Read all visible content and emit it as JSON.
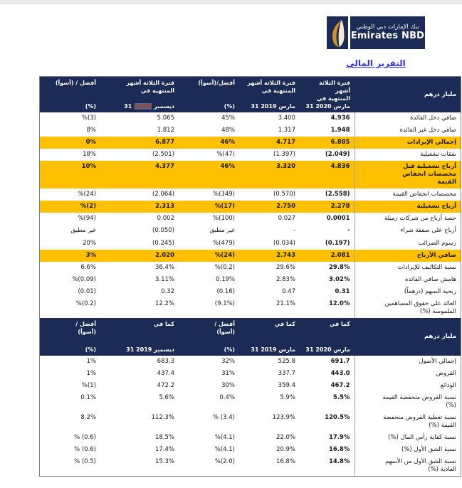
{
  "page": {
    "title": "التقرير المالي"
  },
  "logo": {
    "arabic_name": "بنك الإمارات دبي الوطني",
    "english_name": "Emirates NBD",
    "navy": "#1b2b55",
    "gold": "#c9952c"
  },
  "colors": {
    "header_navy": "#1b2b55",
    "highlight_gold": "#ffc000",
    "title_blue": "#3333e0",
    "revision_red": "#b13a2b",
    "revision_bg": "#5a6480",
    "outer_border": "#7f7f7f"
  },
  "tables": [
    {
      "name": "income-statement",
      "unit_label": "مليار درهم",
      "columns": [
        {
          "key": "mar2020",
          "top": "فترة الثلاثة أشهر",
          "mid": "المنتهية في",
          "bottom": "31 مارس 2020",
          "bold_values": true
        },
        {
          "key": "mar2019",
          "top": "فترة الثلاثة أشهر",
          "mid": "المنتهية في",
          "bottom": "31 مارس 2019"
        },
        {
          "key": "pct-vs-mar2019",
          "top": "أفضل/(أسوأ)",
          "bottom": "(%)"
        },
        {
          "key": "dec2019",
          "top": "فترة الثلاثة أشهر",
          "mid": "المنتهية في",
          "bottom": "31 ديسمبر ",
          "bottom_mark": "2019"
        },
        {
          "key": "pct-vs-dec2019",
          "top": "أفضل / (أسوأ)",
          "bottom": "(%)"
        }
      ],
      "rows": [
        {
          "label": "صافي دخل الفائدة",
          "values": [
            "4.936",
            "3.400",
            "45%",
            "5.065",
            "%(3)"
          ]
        },
        {
          "label": "صافي دخل غير الفائدة",
          "values": [
            "1.948",
            "1.317",
            "48%",
            "1.812",
            "8%"
          ]
        },
        {
          "label": "إجمالي الإيرادات",
          "values": [
            "6.885",
            "4.717",
            "46%",
            "6.877",
            "0%"
          ],
          "highlight": true
        },
        {
          "label": "نفقات تشغيلية",
          "values": [
            "(2.049)",
            "(1.397)",
            "%(47)",
            "(2.501)",
            "18%"
          ]
        },
        {
          "label": "أرباح تشغيلية قبل مخصصات انخفاض القيمة",
          "values": [
            "4.836",
            "3.320",
            "46%",
            "4.377",
            "10%"
          ],
          "highlight": true
        },
        {
          "label": "مخصصات انخفاض القيمة",
          "values": [
            "(2.558)",
            "(0.570)",
            "%(349)",
            "(2.064)",
            "%(24)"
          ]
        },
        {
          "label": "أرباح تشغيلية",
          "values": [
            "2.278",
            "2.750",
            "%(17)",
            "2.313",
            "%(2)"
          ],
          "highlight": true
        },
        {
          "label": "حصة أرباح من شركات زميلة",
          "values": [
            "0.0001",
            "0.027",
            "%(100)",
            "0.002",
            "%(94)"
          ]
        },
        {
          "label": "أرباح على صفقة شراء",
          "values": [
            "-",
            "-",
            "غير مطبق",
            "(0.050)",
            "غير مطبق"
          ]
        },
        {
          "label": "رسوم الضرائب",
          "values": [
            "(0.197)",
            "(0.034)",
            "%(479)",
            "(0.245)",
            "20%"
          ]
        },
        {
          "label": "صافي الأرباح",
          "values": [
            "2.081",
            "2.743",
            "%(24)",
            "2.020",
            "3%"
          ],
          "highlight": true
        },
        {
          "label": "نسبة التكاليف للإيرادات",
          "values": [
            "29.8%",
            "29.6%",
            "%(0.2)",
            "36.4%",
            "6.6%"
          ]
        },
        {
          "label": "هامش صافي الفائدة",
          "values": [
            "3.02%",
            "2.83%",
            "0.19%",
            "3.11%",
            "%(0.09)"
          ]
        },
        {
          "label": "ربحية السهم (درهماً)",
          "values": [
            "0.31",
            "0.47",
            "(0.16)",
            "0.32",
            "(0.01)"
          ]
        },
        {
          "label": "العائد على حقوق المساهمين الملموسة (%)",
          "values": [
            "12.0%",
            "21.1%",
            "(9.1%)",
            "12.2%",
            "%(0.2)"
          ]
        }
      ]
    },
    {
      "name": "balance-sheet",
      "unit_label": "مليار درهم",
      "columns": [
        {
          "key": "mar2020",
          "top": "كما في",
          "bottom": "31 مارس 2020",
          "bold_values": true
        },
        {
          "key": "mar2019",
          "top": "كما في",
          "bottom": "31 مارس 2019"
        },
        {
          "key": "pct-vs-mar2019",
          "top": "أفضل /",
          "mid": "(أسوأ)",
          "bottom": "(%)"
        },
        {
          "key": "dec2019",
          "top": "كما في",
          "bottom": "31 ديسمبر 2019"
        },
        {
          "key": "pct-vs-dec2019",
          "top": "أفضل /",
          "mid": "(أسوأ)",
          "bottom": "(%)"
        }
      ],
      "rows": [
        {
          "label": "إجمالي الأصول",
          "values": [
            "691.7",
            "525.8",
            "32%",
            "683.3",
            "1%"
          ]
        },
        {
          "label": "القروض",
          "values": [
            "443.0",
            "337.7",
            "31%",
            "437.4",
            "1%"
          ]
        },
        {
          "label": "الودائع",
          "values": [
            "467.2",
            "359.4",
            "30%",
            "472.2",
            "%(1)"
          ]
        },
        {
          "label": "نسبة القروض منخفضة القيمة (%)",
          "values": [
            "5.5%",
            "5.9%",
            "0.4%",
            "5.6%",
            "0.1%"
          ]
        },
        {
          "label": "نسبة تغطية القروض منخفضة القيمة (%)",
          "values": [
            "120.5%",
            "123.9%",
            "% (3.4)",
            "112.3%",
            "8.2%"
          ]
        },
        {
          "label": "نسبة كفاية رأس المال (%)",
          "values": [
            "17.9%",
            "22.0%",
            "%(4.1)",
            "18.5%",
            "% (0.6)"
          ]
        },
        {
          "label": "نسبة الشق الأول (%)",
          "values": [
            "16.8%",
            "20.9%",
            "%(4.1)",
            "17.4%",
            "% (0.6)"
          ]
        },
        {
          "label": "نسبة الشق الأول من الأسهم العادية (%)",
          "values": [
            "14.8%",
            "16.8%",
            "%(2.0)",
            "15.3%",
            "% (0.5)"
          ]
        }
      ]
    }
  ]
}
